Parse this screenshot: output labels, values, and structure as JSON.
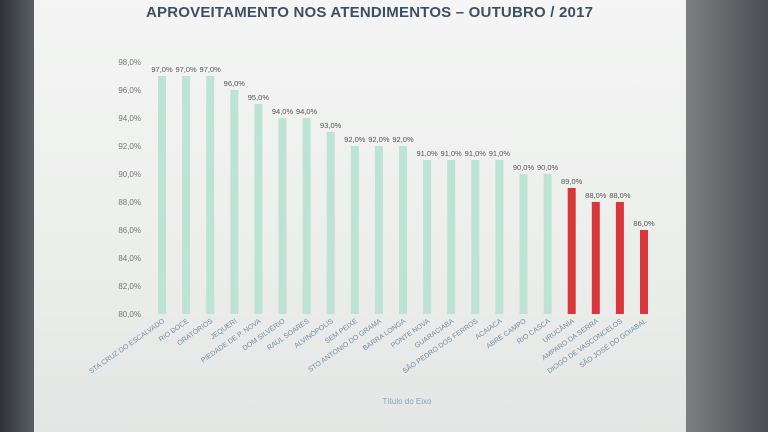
{
  "chart_data": {
    "type": "bar",
    "title": "APROVEITAMENTO NOS ATENDIMENTOS – OUTUBRO / 2017",
    "xlabel": "Título do Eixo",
    "ylabel": "",
    "ylim": [
      80,
      98
    ],
    "yticks": [
      "98,0%",
      "96,0%",
      "94,0%",
      "92,0%",
      "90,0%",
      "88,0%",
      "86,0%",
      "84,0%",
      "82,0%",
      "80,0%"
    ],
    "ytick_values": [
      98,
      96,
      94,
      92,
      90,
      88,
      86,
      84,
      82,
      80
    ],
    "categories": [
      "STA CRUZ DO ESCALVADO",
      "RIO DOCE",
      "ORATÓRIOS",
      "JEQUERI",
      "PIEDADE DE P. NOVA",
      "DOM SILVÉRIO",
      "RAUL SOARES",
      "ALVINÓPOLIS",
      "SEM PEIXE",
      "STO ANTONIO DO GRAMA",
      "BARRA LONGA",
      "PONTE NOVA",
      "GUARACIABA",
      "SÃO PEDRO DOS FERROS",
      "ACAIACA",
      "ABRE CAMPO",
      "RIO CASCA",
      "URUCÂNIA",
      "AMPARO DA SERRA",
      "DIOGO DE VASCONCELOS",
      "SÃO JOSÉ DO GOIABAL"
    ],
    "values": [
      97.0,
      97.0,
      97.0,
      96.0,
      95.0,
      94.0,
      94.0,
      93.0,
      92.0,
      92.0,
      92.0,
      91.0,
      91.0,
      91.0,
      91.0,
      90.0,
      90.0,
      89.0,
      88.0,
      88.0,
      86.0
    ],
    "value_labels": [
      "97,0%",
      "97,0%",
      "97,0%",
      "96,0%",
      "95,0%",
      "94,0%",
      "94,0%",
      "93,0%",
      "92,0%",
      "92,0%",
      "92,0%",
      "91,0%",
      "91,0%",
      "91,0%",
      "91,0%",
      "90,0%",
      "90,0%",
      "89,0%",
      "88,0%",
      "88,0%",
      "86,0%"
    ],
    "bar_colors": [
      "#bde3d6",
      "#bde3d6",
      "#bde3d6",
      "#bde3d6",
      "#bde3d6",
      "#bde3d6",
      "#bde3d6",
      "#bde3d6",
      "#bde3d6",
      "#bde3d6",
      "#bde3d6",
      "#bde3d6",
      "#bde3d6",
      "#bde3d6",
      "#bde3d6",
      "#bde3d6",
      "#bde3d6",
      "#d9383a",
      "#d9383a",
      "#d9383a",
      "#d9383a"
    ],
    "grid": false,
    "legend": "none"
  }
}
